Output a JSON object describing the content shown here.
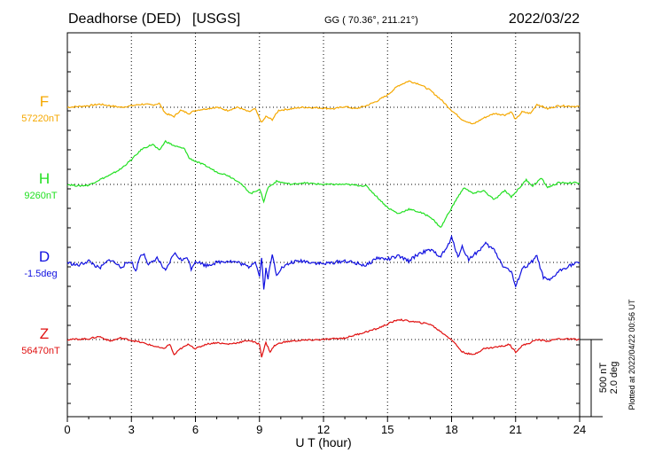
{
  "header": {
    "station": "Deadhorse (DED)",
    "source": "[USGS]",
    "coords": "GG ( 70.36°, 211.21°)",
    "date": "2022/03/22"
  },
  "plotted_note": "Plotted at 2022/04/22 00:56 UT",
  "scale": {
    "nt": "500 nT",
    "deg": "2.0 deg"
  },
  "chart_data": {
    "type": "line",
    "title": "Deadhorse (DED)  [USGS]",
    "xlabel": "U T (hour)",
    "xlim": [
      0,
      24
    ],
    "xticks": [
      0,
      3,
      6,
      9,
      12,
      15,
      18,
      21,
      24
    ],
    "grid": true,
    "series": [
      {
        "name": "F",
        "baseline_label": "57220nT",
        "color": "#f5a800",
        "points": [
          [
            0,
            0
          ],
          [
            1,
            10
          ],
          [
            1.5,
            20
          ],
          [
            2,
            10
          ],
          [
            2.5,
            0
          ],
          [
            3,
            10
          ],
          [
            3.5,
            20
          ],
          [
            4,
            15
          ],
          [
            4.3,
            25
          ],
          [
            4.6,
            -40
          ],
          [
            5,
            -60
          ],
          [
            5.3,
            -20
          ],
          [
            5.7,
            -40
          ],
          [
            6,
            -20
          ],
          [
            6.5,
            -10
          ],
          [
            7,
            0
          ],
          [
            7.5,
            -20
          ],
          [
            8,
            0
          ],
          [
            8.5,
            -30
          ],
          [
            8.8,
            -10
          ],
          [
            9.1,
            -100
          ],
          [
            9.3,
            -60
          ],
          [
            9.6,
            -80
          ],
          [
            9.9,
            -20
          ],
          [
            10.5,
            -10
          ],
          [
            11,
            0
          ],
          [
            12,
            -5
          ],
          [
            12.5,
            -10
          ],
          [
            13,
            5
          ],
          [
            13.5,
            -10
          ],
          [
            14,
            10
          ],
          [
            14.5,
            40
          ],
          [
            15,
            80
          ],
          [
            15.5,
            140
          ],
          [
            16,
            170
          ],
          [
            16.5,
            150
          ],
          [
            17,
            110
          ],
          [
            17.5,
            50
          ],
          [
            18,
            -20
          ],
          [
            18.5,
            -80
          ],
          [
            19,
            -110
          ],
          [
            19.5,
            -70
          ],
          [
            20,
            -40
          ],
          [
            20.5,
            -50
          ],
          [
            20.8,
            -30
          ],
          [
            21,
            -80
          ],
          [
            21.3,
            -30
          ],
          [
            21.7,
            -40
          ],
          [
            22,
            20
          ],
          [
            22.5,
            -10
          ],
          [
            23,
            10
          ],
          [
            24,
            5
          ]
        ]
      },
      {
        "name": "H",
        "baseline_label": "9260nT",
        "color": "#22e022",
        "points": [
          [
            0,
            0
          ],
          [
            0.5,
            -10
          ],
          [
            1,
            -5
          ],
          [
            1.5,
            30
          ],
          [
            2,
            60
          ],
          [
            2.5,
            100
          ],
          [
            3,
            160
          ],
          [
            3.5,
            230
          ],
          [
            4,
            260
          ],
          [
            4.3,
            220
          ],
          [
            4.6,
            280
          ],
          [
            5,
            250
          ],
          [
            5.5,
            230
          ],
          [
            5.7,
            170
          ],
          [
            6,
            150
          ],
          [
            6.5,
            120
          ],
          [
            7,
            80
          ],
          [
            7.5,
            60
          ],
          [
            8,
            20
          ],
          [
            8.3,
            -20
          ],
          [
            8.6,
            -60
          ],
          [
            9,
            -30
          ],
          [
            9.2,
            -110
          ],
          [
            9.4,
            -20
          ],
          [
            9.8,
            20
          ],
          [
            10.5,
            0
          ],
          [
            11,
            10
          ],
          [
            12,
            0
          ],
          [
            13,
            0
          ],
          [
            14,
            -10
          ],
          [
            14.5,
            -80
          ],
          [
            15,
            -150
          ],
          [
            15.5,
            -190
          ],
          [
            16,
            -160
          ],
          [
            16.5,
            -180
          ],
          [
            17,
            -210
          ],
          [
            17.5,
            -280
          ],
          [
            17.8,
            -200
          ],
          [
            18.3,
            -80
          ],
          [
            18.6,
            -20
          ],
          [
            19,
            -60
          ],
          [
            19.5,
            -40
          ],
          [
            20,
            -100
          ],
          [
            20.5,
            -40
          ],
          [
            20.8,
            -80
          ],
          [
            21.2,
            -20
          ],
          [
            21.5,
            30
          ],
          [
            21.8,
            -10
          ],
          [
            22.2,
            40
          ],
          [
            22.5,
            -20
          ],
          [
            23,
            10
          ],
          [
            24,
            10
          ]
        ]
      },
      {
        "name": "D",
        "baseline_label": "-1.5deg",
        "color": "#1010e0",
        "points": [
          [
            0,
            0
          ],
          [
            0.5,
            -20
          ],
          [
            1,
            10
          ],
          [
            1.5,
            -40
          ],
          [
            2,
            20
          ],
          [
            2.5,
            -30
          ],
          [
            3,
            10
          ],
          [
            3.2,
            -60
          ],
          [
            3.4,
            40
          ],
          [
            3.6,
            60
          ],
          [
            3.8,
            -20
          ],
          [
            4.2,
            30
          ],
          [
            4.6,
            -60
          ],
          [
            5,
            60
          ],
          [
            5.4,
            10
          ],
          [
            5.6,
            40
          ],
          [
            5.8,
            -40
          ],
          [
            6,
            10
          ],
          [
            6.5,
            -20
          ],
          [
            7,
            0
          ],
          [
            7.5,
            10
          ],
          [
            8,
            0
          ],
          [
            8.5,
            -30
          ],
          [
            8.8,
            10
          ],
          [
            9,
            -90
          ],
          [
            9.1,
            40
          ],
          [
            9.2,
            -180
          ],
          [
            9.3,
            -40
          ],
          [
            9.4,
            -100
          ],
          [
            9.6,
            50
          ],
          [
            9.8,
            -80
          ],
          [
            10,
            -40
          ],
          [
            10.5,
            0
          ],
          [
            11,
            10
          ],
          [
            12,
            -10
          ],
          [
            13,
            10
          ],
          [
            14,
            -20
          ],
          [
            14.5,
            30
          ],
          [
            15,
            20
          ],
          [
            15.5,
            40
          ],
          [
            16,
            10
          ],
          [
            16.5,
            60
          ],
          [
            17,
            80
          ],
          [
            17.5,
            40
          ],
          [
            17.8,
            100
          ],
          [
            18,
            160
          ],
          [
            18.3,
            40
          ],
          [
            18.5,
            100
          ],
          [
            18.8,
            20
          ],
          [
            19.3,
            80
          ],
          [
            19.6,
            120
          ],
          [
            20,
            80
          ],
          [
            20.4,
            -20
          ],
          [
            20.8,
            -60
          ],
          [
            21,
            -160
          ],
          [
            21.3,
            -40
          ],
          [
            21.6,
            -20
          ],
          [
            22,
            40
          ],
          [
            22.3,
            -100
          ],
          [
            22.6,
            -120
          ],
          [
            23,
            -60
          ],
          [
            23.5,
            -20
          ],
          [
            24,
            0
          ]
        ]
      },
      {
        "name": "Z",
        "baseline_label": "56470nT",
        "color": "#e01010",
        "points": [
          [
            0,
            0
          ],
          [
            1,
            5
          ],
          [
            1.5,
            20
          ],
          [
            2,
            -10
          ],
          [
            2.5,
            10
          ],
          [
            3,
            -5
          ],
          [
            3.5,
            -20
          ],
          [
            4,
            -40
          ],
          [
            4.5,
            -60
          ],
          [
            4.8,
            -30
          ],
          [
            5,
            -100
          ],
          [
            5.3,
            -60
          ],
          [
            5.7,
            -30
          ],
          [
            6,
            -60
          ],
          [
            6.5,
            -30
          ],
          [
            7,
            -20
          ],
          [
            7.5,
            -30
          ],
          [
            8,
            -20
          ],
          [
            8.5,
            -5
          ],
          [
            9,
            -30
          ],
          [
            9.1,
            -110
          ],
          [
            9.3,
            -20
          ],
          [
            9.5,
            -80
          ],
          [
            9.7,
            -40
          ],
          [
            10,
            -20
          ],
          [
            10.5,
            -10
          ],
          [
            11,
            -5
          ],
          [
            12,
            0
          ],
          [
            13,
            10
          ],
          [
            13.5,
            30
          ],
          [
            14,
            50
          ],
          [
            14.5,
            70
          ],
          [
            15,
            100
          ],
          [
            15.5,
            130
          ],
          [
            16,
            120
          ],
          [
            16.5,
            110
          ],
          [
            17,
            100
          ],
          [
            17.5,
            50
          ],
          [
            18,
            0
          ],
          [
            18.5,
            -80
          ],
          [
            19,
            -100
          ],
          [
            19.5,
            -60
          ],
          [
            20,
            -50
          ],
          [
            20.5,
            -40
          ],
          [
            20.7,
            -30
          ],
          [
            21,
            -80
          ],
          [
            21.3,
            -40
          ],
          [
            21.7,
            -20
          ],
          [
            22,
            0
          ],
          [
            22.5,
            -10
          ],
          [
            23,
            5
          ],
          [
            24,
            0
          ]
        ]
      }
    ]
  }
}
